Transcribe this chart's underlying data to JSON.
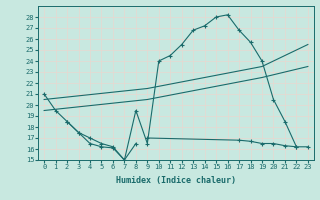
{
  "xlabel": "Humidex (Indice chaleur)",
  "background_color": "#c8e8e0",
  "grid_color": "#b0d8d0",
  "line_color": "#1a6b6b",
  "xlim": [
    -0.5,
    23.5
  ],
  "ylim": [
    15,
    29
  ],
  "yticks": [
    15,
    16,
    17,
    18,
    19,
    20,
    21,
    22,
    23,
    24,
    25,
    26,
    27,
    28
  ],
  "xticks": [
    0,
    1,
    2,
    3,
    4,
    5,
    6,
    7,
    8,
    9,
    10,
    11,
    12,
    13,
    14,
    15,
    16,
    17,
    18,
    19,
    20,
    21,
    22,
    23
  ],
  "curve1_x": [
    0,
    1,
    2,
    3,
    4,
    5,
    6,
    7,
    8,
    9,
    10,
    11,
    12,
    13,
    14,
    15,
    16,
    17,
    18,
    19,
    20,
    21,
    22,
    23
  ],
  "curve1_y": [
    21.0,
    19.5,
    18.5,
    17.5,
    16.5,
    16.2,
    16.1,
    15.0,
    19.5,
    16.5,
    24.0,
    24.5,
    25.5,
    26.8,
    27.2,
    28.0,
    28.2,
    26.8,
    25.7,
    24.0,
    20.5,
    18.5,
    16.2,
    null
  ],
  "curve2_x": [
    0,
    9,
    19,
    23
  ],
  "curve2_y": [
    20.5,
    21.5,
    23.5,
    25.5
  ],
  "curve3_x": [
    0,
    9,
    19,
    23
  ],
  "curve3_y": [
    19.5,
    20.5,
    22.5,
    23.5
  ],
  "curve4_x": [
    2,
    3,
    4,
    5,
    6,
    7,
    8,
    9,
    17,
    18,
    19,
    20,
    21,
    22,
    23
  ],
  "curve4_y": [
    18.5,
    17.5,
    17.0,
    16.5,
    16.2,
    15.0,
    16.5,
    17.0,
    16.8,
    16.7,
    16.5,
    16.5,
    16.3,
    16.2,
    16.2
  ]
}
